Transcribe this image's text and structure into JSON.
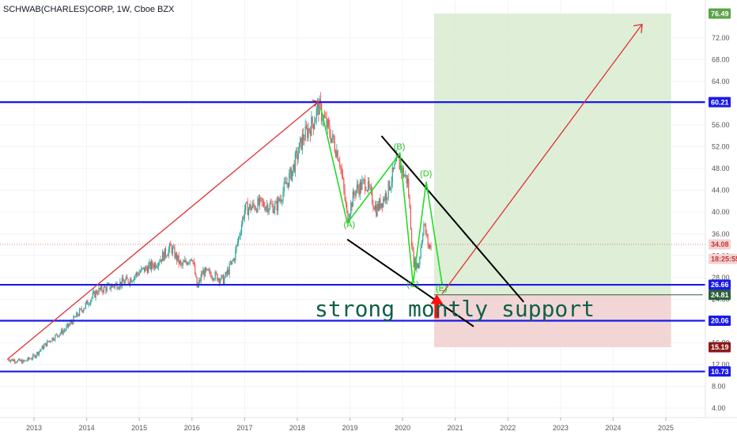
{
  "header": {
    "title": "SCHWAB(CHARLES)CORP, 1W, Cboe BZX"
  },
  "colors": {
    "background": "#ffffff",
    "grid": "#f0f3fa",
    "support_line": "#1a1ae6",
    "trend_line": "#e03030",
    "channel_line": "#000000",
    "wave_line": "#22dd22",
    "profit_zone": "#d8ebd0",
    "loss_zone": "#f1d2d2",
    "candle_up": "#26a69a",
    "candle_down": "#ef5350",
    "arrow_up": "#ff1010"
  },
  "annotation": {
    "support_text": "strong montly support"
  },
  "chart_data": {
    "type": "candlestick",
    "title": "SCHWAB(CHARLES)CORP, 1W, Cboe BZX",
    "x_ticks": [
      "2013",
      "2014",
      "2015",
      "2016",
      "2017",
      "2018",
      "2019",
      "2020",
      "2021",
      "2022",
      "2023",
      "2024",
      "2025"
    ],
    "y_ticks": [
      "72.00",
      "68.00",
      "64.00",
      "60.00",
      "56.00",
      "52.00",
      "48.00",
      "44.00",
      "40.00",
      "36.00",
      "32.00",
      "28.00",
      "24.00",
      "20.00",
      "16.00",
      "12.00",
      "8.00",
      "4.00"
    ],
    "ylim": [
      2,
      78
    ],
    "xlim": [
      2012.5,
      2025.7
    ],
    "price_tags": [
      {
        "label": "76.49",
        "value": 76.49,
        "color": "#5aa447"
      },
      {
        "label": "60.21",
        "value": 60.21,
        "color": "#1a1ae6"
      },
      {
        "label": "34.08",
        "value": 34.08,
        "color": "#f3d4d4",
        "text_color": "#cc3333"
      },
      {
        "label": "18:25:55",
        "value": 31.4,
        "color": "#f3d4d4",
        "text_color": "#cc3333"
      },
      {
        "label": "26.66",
        "value": 26.66,
        "color": "#1a1ae6"
      },
      {
        "label": "24.81",
        "value": 24.81,
        "color": "#2c5f3a"
      },
      {
        "label": "20.06",
        "value": 20.06,
        "color": "#1a1ae6"
      },
      {
        "label": "15.19",
        "value": 15.19,
        "color": "#8b1a1a"
      },
      {
        "label": "10.73",
        "value": 10.73,
        "color": "#1a1ae6"
      }
    ],
    "horizontal_levels": [
      60.21,
      26.66,
      20.06,
      10.73
    ],
    "price_path": [
      [
        2012.5,
        13.0
      ],
      [
        2012.8,
        12.5
      ],
      [
        2013.0,
        13.5
      ],
      [
        2013.3,
        16.5
      ],
      [
        2013.6,
        18.5
      ],
      [
        2013.9,
        22.0
      ],
      [
        2014.2,
        25.5
      ],
      [
        2014.5,
        26.5
      ],
      [
        2014.8,
        27.5
      ],
      [
        2015.0,
        29.0
      ],
      [
        2015.3,
        30.5
      ],
      [
        2015.6,
        33.5
      ],
      [
        2015.8,
        30.0
      ],
      [
        2016.0,
        32.0
      ],
      [
        2016.1,
        26.0
      ],
      [
        2016.2,
        29.0
      ],
      [
        2016.4,
        28.5
      ],
      [
        2016.6,
        27.5
      ],
      [
        2016.8,
        31.5
      ],
      [
        2017.0,
        40.5
      ],
      [
        2017.3,
        41.5
      ],
      [
        2017.6,
        41.0
      ],
      [
        2017.9,
        47.5
      ],
      [
        2018.1,
        53.5
      ],
      [
        2018.3,
        56.5
      ],
      [
        2018.4,
        59.5
      ],
      [
        2018.6,
        55.0
      ],
      [
        2018.8,
        50.0
      ],
      [
        2018.95,
        39.0
      ],
      [
        2019.1,
        44.0
      ],
      [
        2019.3,
        45.5
      ],
      [
        2019.5,
        40.5
      ],
      [
        2019.7,
        43.5
      ],
      [
        2019.9,
        49.5
      ],
      [
        2020.1,
        45.5
      ],
      [
        2020.2,
        31.0
      ],
      [
        2020.3,
        30.0
      ],
      [
        2020.4,
        38.0
      ],
      [
        2020.5,
        33.5
      ],
      [
        2020.55,
        34.08
      ]
    ],
    "wave_labels": [
      {
        "label": "(A)",
        "x": 2019.0,
        "y": 37.2
      },
      {
        "label": "(B)",
        "x": 2019.95,
        "y": 51.5
      },
      {
        "label": "(C)",
        "x": 2020.2,
        "y": 26.2
      },
      {
        "label": "(D)",
        "x": 2020.45,
        "y": 46.6
      },
      {
        "label": "(E)",
        "x": 2020.75,
        "y": 25.5
      }
    ],
    "wave_path": [
      [
        2018.45,
        59.0
      ],
      [
        2018.95,
        38.0
      ],
      [
        2019.95,
        50.8
      ],
      [
        2020.2,
        26.9
      ],
      [
        2020.45,
        45.6
      ],
      [
        2020.75,
        26.8
      ]
    ],
    "trend_line_up": [
      [
        2012.5,
        13.0
      ],
      [
        2018.4,
        60.3
      ]
    ],
    "trend_line_target": [
      [
        2020.75,
        25.0
      ],
      [
        2024.55,
        74.5
      ]
    ],
    "channel_upper": [
      [
        2019.6,
        54.0
      ],
      [
        2022.3,
        23.5
      ]
    ],
    "channel_lower": [
      [
        2018.95,
        35.0
      ],
      [
        2021.35,
        19.0
      ]
    ],
    "profit_zone": {
      "x0": 2020.6,
      "x1": 2025.1,
      "y0": 24.81,
      "y1": 76.49
    },
    "loss_zone": {
      "x0": 2020.6,
      "x1": 2025.1,
      "y0": 15.19,
      "y1": 24.81
    },
    "position_start_line": {
      "x0": 2020.6,
      "x1": 2025.1,
      "y": 24.81
    }
  }
}
